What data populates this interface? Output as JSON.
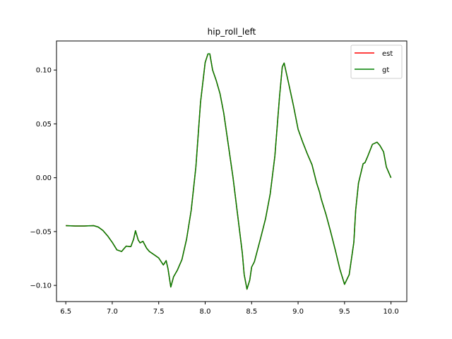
{
  "chart_data": {
    "type": "line",
    "title": "hip_roll_left",
    "xlabel": "",
    "ylabel": "",
    "xlim": [
      6.4,
      10.17
    ],
    "ylim": [
      -0.115,
      0.127
    ],
    "grid": false,
    "legend_position": "top-right",
    "xticks": [
      6.5,
      7.0,
      7.5,
      8.0,
      8.5,
      9.0,
      9.5,
      10.0
    ],
    "xtick_labels": [
      "6.5",
      "7.0",
      "7.5",
      "8.0",
      "8.5",
      "9.0",
      "9.5",
      "10.0"
    ],
    "yticks": [
      -0.1,
      -0.05,
      0.0,
      0.05,
      0.1
    ],
    "ytick_labels": [
      "−0.10",
      "−0.05",
      "0.00",
      "0.05",
      "0.10"
    ],
    "series": [
      {
        "name": "est",
        "color": "#ff0000",
        "x": [
          6.5,
          6.6,
          6.7,
          6.8,
          6.85,
          6.9,
          6.95,
          7.0,
          7.05,
          7.1,
          7.15,
          7.2,
          7.23,
          7.25,
          7.28,
          7.3,
          7.33,
          7.37,
          7.4,
          7.45,
          7.5,
          7.55,
          7.58,
          7.6,
          7.63,
          7.66,
          7.7,
          7.75,
          7.8,
          7.85,
          7.9,
          7.95,
          8.0,
          8.03,
          8.05,
          8.08,
          8.12,
          8.16,
          8.2,
          8.25,
          8.3,
          8.35,
          8.4,
          8.42,
          8.45,
          8.48,
          8.5,
          8.53,
          8.6,
          8.65,
          8.7,
          8.75,
          8.8,
          8.83,
          8.85,
          8.9,
          8.95,
          9.0,
          9.05,
          9.1,
          9.15,
          9.2,
          9.23,
          9.25,
          9.3,
          9.35,
          9.4,
          9.45,
          9.5,
          9.55,
          9.6,
          9.62,
          9.65,
          9.7,
          9.72,
          9.75,
          9.8,
          9.85,
          9.88,
          9.92,
          9.95,
          10.0
        ],
        "y": [
          -0.0445,
          -0.0448,
          -0.0448,
          -0.0445,
          -0.0458,
          -0.049,
          -0.054,
          -0.06,
          -0.067,
          -0.0685,
          -0.0635,
          -0.064,
          -0.057,
          -0.0492,
          -0.058,
          -0.0605,
          -0.059,
          -0.0655,
          -0.0685,
          -0.0715,
          -0.0745,
          -0.081,
          -0.077,
          -0.0845,
          -0.1015,
          -0.092,
          -0.086,
          -0.076,
          -0.057,
          -0.03,
          0.01,
          0.07,
          0.107,
          0.115,
          0.115,
          0.1,
          0.09,
          0.078,
          0.06,
          0.03,
          0.0,
          -0.035,
          -0.07,
          -0.09,
          -0.1035,
          -0.095,
          -0.083,
          -0.078,
          -0.055,
          -0.038,
          -0.015,
          0.02,
          0.075,
          0.103,
          0.1065,
          0.087,
          0.067,
          0.045,
          0.033,
          0.022,
          0.012,
          -0.005,
          -0.013,
          -0.02,
          -0.034,
          -0.05,
          -0.067,
          -0.085,
          -0.099,
          -0.09,
          -0.06,
          -0.03,
          -0.005,
          0.013,
          0.014,
          0.02,
          0.031,
          0.033,
          0.03,
          0.024,
          0.01,
          0.0
        ]
      },
      {
        "name": "gt",
        "color": "#008000",
        "x": [
          6.5,
          6.6,
          6.7,
          6.8,
          6.85,
          6.9,
          6.95,
          7.0,
          7.05,
          7.1,
          7.15,
          7.2,
          7.23,
          7.25,
          7.28,
          7.3,
          7.33,
          7.37,
          7.4,
          7.45,
          7.5,
          7.55,
          7.58,
          7.6,
          7.63,
          7.66,
          7.7,
          7.75,
          7.8,
          7.85,
          7.9,
          7.95,
          8.0,
          8.03,
          8.05,
          8.08,
          8.12,
          8.16,
          8.2,
          8.25,
          8.3,
          8.35,
          8.4,
          8.42,
          8.45,
          8.48,
          8.5,
          8.53,
          8.6,
          8.65,
          8.7,
          8.75,
          8.8,
          8.83,
          8.85,
          8.9,
          8.95,
          9.0,
          9.05,
          9.1,
          9.15,
          9.2,
          9.23,
          9.25,
          9.3,
          9.35,
          9.4,
          9.45,
          9.5,
          9.55,
          9.6,
          9.62,
          9.65,
          9.7,
          9.72,
          9.75,
          9.8,
          9.85,
          9.88,
          9.92,
          9.95,
          10.0
        ],
        "y": [
          -0.0445,
          -0.0448,
          -0.0448,
          -0.0445,
          -0.0458,
          -0.049,
          -0.054,
          -0.06,
          -0.067,
          -0.0685,
          -0.0635,
          -0.064,
          -0.057,
          -0.0492,
          -0.058,
          -0.0605,
          -0.059,
          -0.0655,
          -0.0685,
          -0.0715,
          -0.0745,
          -0.081,
          -0.077,
          -0.0845,
          -0.1015,
          -0.092,
          -0.086,
          -0.076,
          -0.057,
          -0.03,
          0.01,
          0.07,
          0.107,
          0.115,
          0.115,
          0.1,
          0.09,
          0.078,
          0.06,
          0.03,
          0.0,
          -0.035,
          -0.07,
          -0.09,
          -0.1035,
          -0.095,
          -0.083,
          -0.078,
          -0.055,
          -0.038,
          -0.015,
          0.02,
          0.075,
          0.103,
          0.1065,
          0.087,
          0.067,
          0.045,
          0.033,
          0.022,
          0.012,
          -0.005,
          -0.013,
          -0.02,
          -0.034,
          -0.05,
          -0.067,
          -0.085,
          -0.099,
          -0.09,
          -0.06,
          -0.03,
          -0.005,
          0.013,
          0.014,
          0.02,
          0.031,
          0.033,
          0.03,
          0.024,
          0.01,
          0.0
        ]
      }
    ]
  }
}
